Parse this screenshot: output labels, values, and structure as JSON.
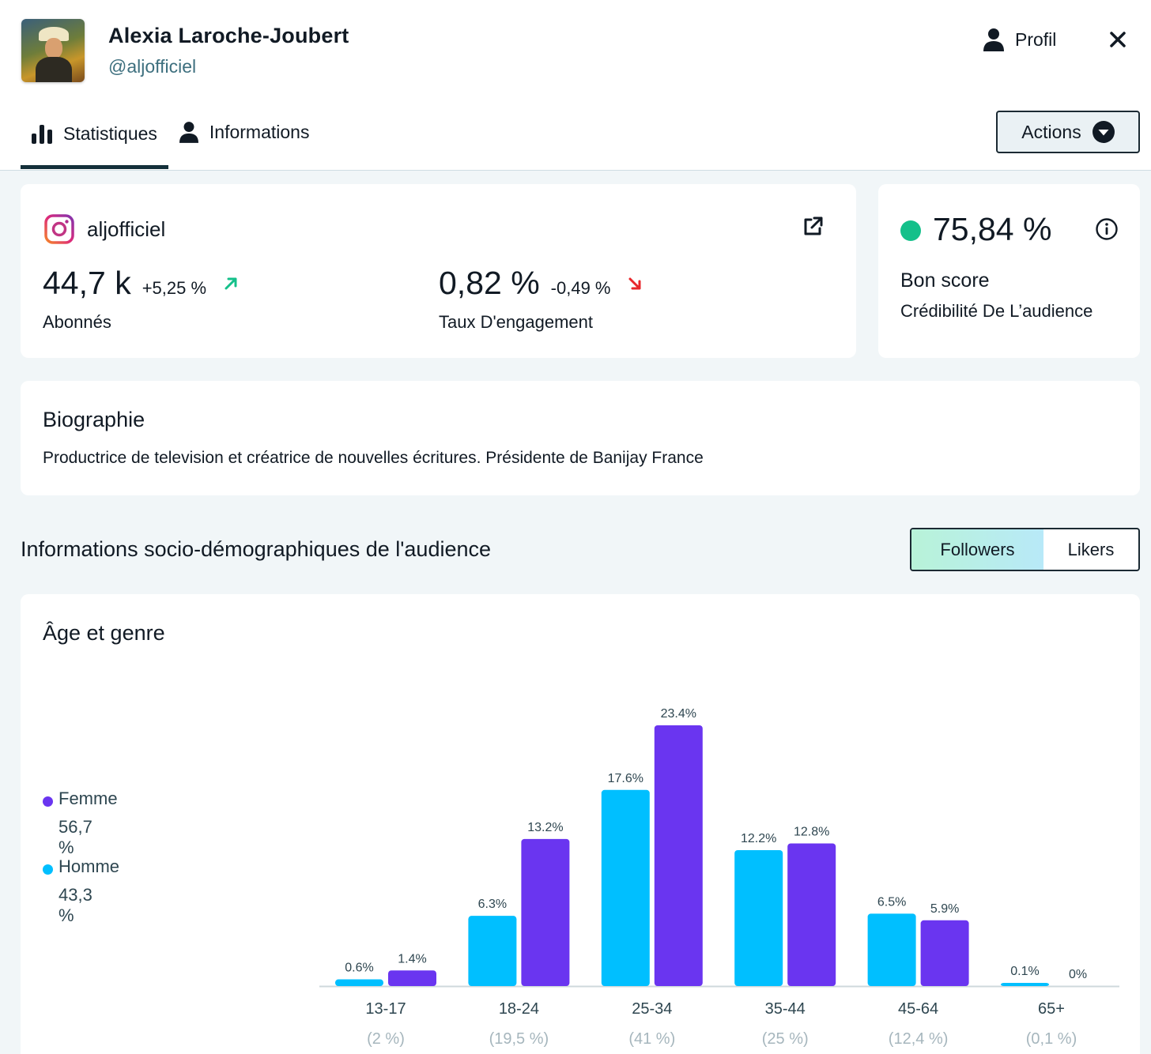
{
  "header": {
    "user_name": "Alexia Laroche-Joubert",
    "user_handle": "@aljofficiel",
    "profil_label": "Profil",
    "icons": {
      "profil": "person-icon",
      "close": "close-icon"
    }
  },
  "tabs": [
    {
      "label": "Statistiques",
      "icon": "bar-chart-icon",
      "active": true
    },
    {
      "label": "Informations",
      "icon": "person-icon",
      "active": false
    }
  ],
  "actions": {
    "label": "Actions",
    "icon": "chevron-down-circle-icon"
  },
  "account": {
    "platform_icon": "instagram-icon",
    "name": "aljofficiel",
    "link_icon": "external-link-icon",
    "followers": {
      "value": "44,7 k",
      "delta": "+5,25 %",
      "trend": "up",
      "label": "Abonnés"
    },
    "engagement": {
      "value": "0,82 %",
      "delta": "-0,49 %",
      "trend": "down",
      "label": "Taux D'engagement"
    }
  },
  "score": {
    "value": "75,84 %",
    "label": "Bon score",
    "sublabel": "Crédibilité De L’audience",
    "color": "#14c08a"
  },
  "bio": {
    "title": "Biographie",
    "text": "Productrice de television et créatrice de nouvelles écritures. Présidente de Banijay France"
  },
  "demographics": {
    "title": "Informations socio-démographiques de l'audience",
    "toggle": [
      "Followers",
      "Likers"
    ],
    "toggle_selected": "Followers"
  },
  "chart_data": {
    "type": "bar",
    "title": "Âge et genre",
    "categories": [
      "13-17",
      "18-24",
      "25-34",
      "35-44",
      "45-64",
      "65+"
    ],
    "category_totals": [
      "(2 %)",
      "(19,5 %)",
      "(41 %)",
      "(25 %)",
      "(12,4 %)",
      "(0,1 %)"
    ],
    "series": [
      {
        "name": "Homme",
        "color": "#00bfff",
        "values": [
          0.6,
          6.3,
          17.6,
          12.2,
          6.5,
          0.1
        ],
        "labels": [
          "0.6%",
          "6.3%",
          "17.6%",
          "12.2%",
          "6.5%",
          "0.1%"
        ]
      },
      {
        "name": "Femme",
        "color": "#6a35f0",
        "values": [
          1.4,
          13.2,
          23.4,
          12.8,
          5.9,
          0
        ],
        "labels": [
          "1.4%",
          "13.2%",
          "23.4%",
          "12.8%",
          "5.9%",
          "0%"
        ]
      }
    ],
    "legend": [
      {
        "name": "Femme",
        "pct": "56,7 %",
        "color": "#6a35f0"
      },
      {
        "name": "Homme",
        "pct": "43,3 %",
        "color": "#00bfff"
      }
    ],
    "ylim": [
      0,
      23.4
    ],
    "grid": false,
    "legend_position": "left"
  }
}
